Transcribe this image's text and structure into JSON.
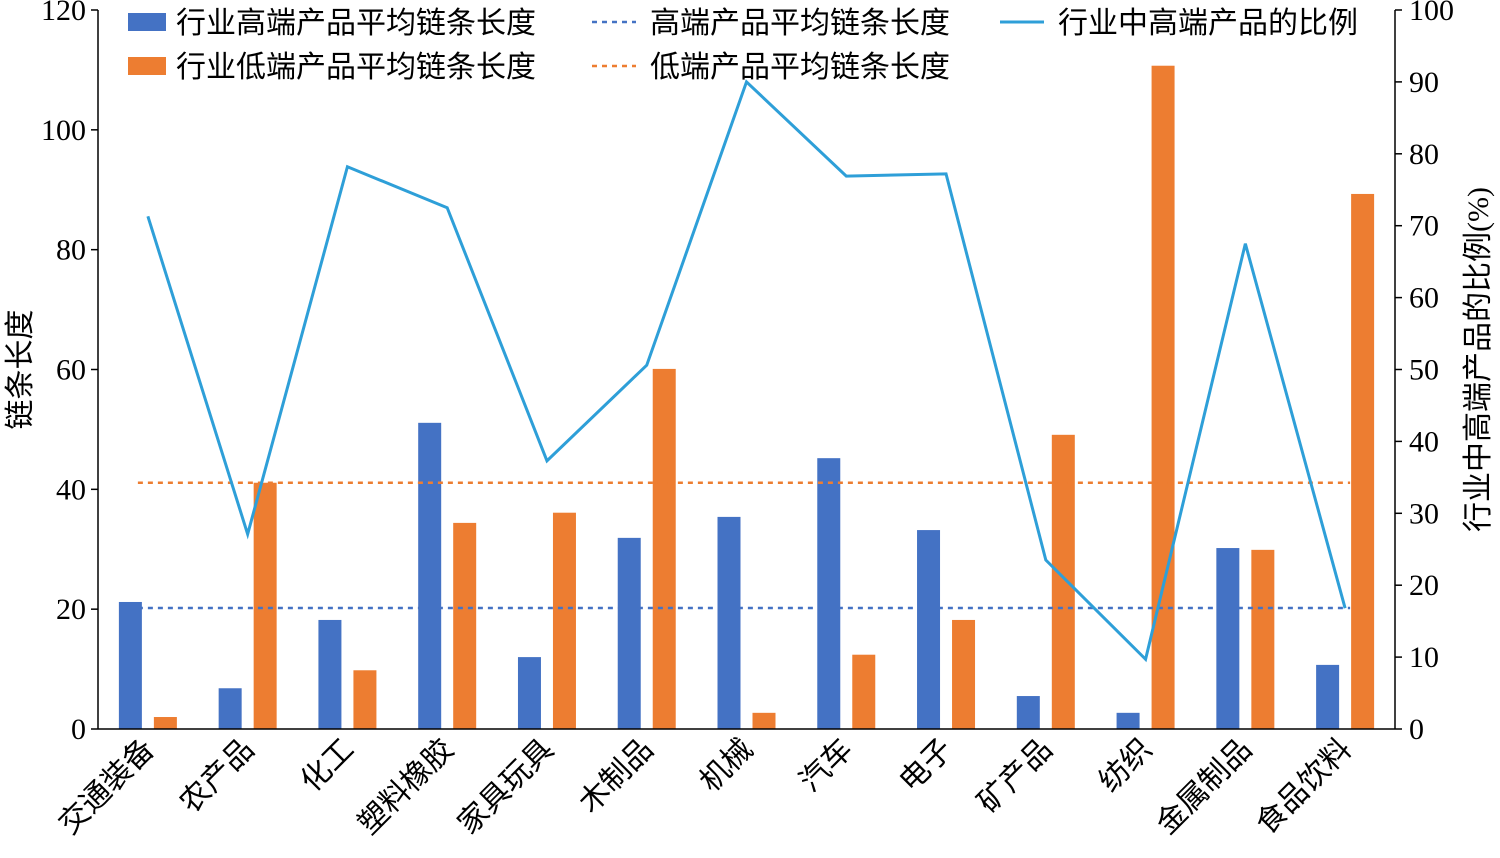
{
  "chart_data": {
    "type": "bar",
    "categories": [
      "交通装备",
      "农产品",
      "化工",
      "塑料橡胶",
      "家具玩具",
      "木制品",
      "机械",
      "汽车",
      "电子",
      "矿产品",
      "纺织",
      "金属制品",
      "食品饮料"
    ],
    "series": [
      {
        "name": "行业高端产品平均链条长度",
        "type": "bar",
        "axis": "left",
        "color": "#4472C4",
        "values": [
          21.2,
          6.8,
          18.2,
          51.1,
          12.0,
          31.9,
          35.4,
          45.2,
          33.2,
          5.5,
          2.7,
          30.2,
          10.7
        ]
      },
      {
        "name": "行业低端产品平均链条长度",
        "type": "bar",
        "axis": "left",
        "color": "#ED7D31",
        "values": [
          2.0,
          41.1,
          9.8,
          34.4,
          36.1,
          60.1,
          2.7,
          12.4,
          18.2,
          49.1,
          110.7,
          29.9,
          89.3
        ]
      },
      {
        "name": "高端产品平均链条长度",
        "type": "hline",
        "axis": "left",
        "color": "#4472C4",
        "value": 20.2
      },
      {
        "name": "低端产品平均链条长度",
        "type": "hline",
        "axis": "left",
        "color": "#ED7D31",
        "value": 41.1
      },
      {
        "name": "行业中高端产品的比例",
        "type": "line",
        "axis": "right",
        "color": "#2E9FD8",
        "values": [
          71.3,
          27.1,
          78.2,
          72.5,
          37.3,
          50.6,
          90.0,
          76.9,
          77.2,
          23.5,
          9.7,
          67.5,
          16.8
        ]
      }
    ],
    "ylabel": "链条长度",
    "y2label": "行业中高端产品的比例(%)",
    "ylim": [
      0,
      120
    ],
    "y2lim": [
      0,
      100
    ],
    "yticks": [
      "0",
      "20",
      "40",
      "60",
      "80",
      "100",
      "120"
    ],
    "y2ticks": [
      "0",
      "10",
      "20",
      "30",
      "40",
      "50",
      "60",
      "70",
      "80",
      "90",
      "100"
    ],
    "legend": "top",
    "grid": false
  }
}
